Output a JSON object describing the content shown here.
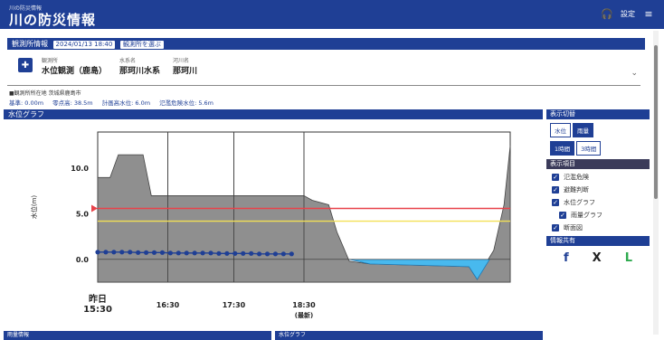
{
  "header": {
    "subtitle": "川の防災情報",
    "title": "川の防災情報",
    "tool_label": "設定"
  },
  "section_bar": {
    "label": "観測所情報",
    "timestamp": "2024/01/13 18:40",
    "link_label": "観測所を選ぶ"
  },
  "station": {
    "fields": [
      {
        "k": "観測所",
        "v": "水位観測（鹿島）"
      },
      {
        "k": "水系名",
        "v": "那珂川水系"
      },
      {
        "k": "河川名",
        "v": "那珂川"
      }
    ]
  },
  "info": {
    "row1": "■観測所所在地 茨城県鹿島市",
    "row2": [
      "基準: 0.00m",
      "零点高: 38.5m",
      "計画高水位: 6.0m",
      "氾濫危険水位: 5.6m"
    ]
  },
  "chart_panel": {
    "label": "水位グラフ"
  },
  "chart_data": {
    "type": "area",
    "ylabel": "水位(m)",
    "ylim": [
      -2.5,
      14.0
    ],
    "y_ticks": [
      10.0,
      5.0,
      0.0
    ],
    "x_ticks": [
      "16:30",
      "17:30",
      "18:30"
    ],
    "x_first_label": "昨日\n15:30",
    "x_last_sublabel": "(最新)",
    "terrain_profile": [
      [
        0,
        9.0
      ],
      [
        0.03,
        9.0
      ],
      [
        0.05,
        11.5
      ],
      [
        0.11,
        11.5
      ],
      [
        0.13,
        7.0
      ],
      [
        0.22,
        7.0
      ],
      [
        0.22,
        7.0
      ],
      [
        0.44,
        7.0
      ],
      [
        0.5,
        7.0
      ],
      [
        0.52,
        6.5
      ],
      [
        0.56,
        6.0
      ],
      [
        0.58,
        3.0
      ],
      [
        0.61,
        -0.2
      ],
      [
        0.66,
        -0.5
      ],
      [
        0.9,
        -0.8
      ],
      [
        0.92,
        -2.2
      ],
      [
        0.94,
        -0.5
      ],
      [
        0.96,
        1.0
      ],
      [
        0.985,
        6.0
      ],
      [
        1.0,
        12.5
      ]
    ],
    "water_polygon": [
      [
        0.61,
        0.0
      ],
      [
        0.95,
        0.0
      ],
      [
        0.92,
        -2.2
      ],
      [
        0.9,
        -0.8
      ],
      [
        0.66,
        -0.5
      ]
    ],
    "threshold_lines": [
      {
        "value": 5.6,
        "color": "#e8424a"
      },
      {
        "value": 4.2,
        "color": "#f2e055"
      }
    ],
    "series": [
      {
        "color": "#1f3f95",
        "values": [
          0.8,
          0.8,
          0.8,
          0.8,
          0.8,
          0.75,
          0.75,
          0.75,
          0.75,
          0.7,
          0.7,
          0.7,
          0.7,
          0.7,
          0.7,
          0.65,
          0.65,
          0.65,
          0.65,
          0.65,
          0.6,
          0.6,
          0.6,
          0.6,
          0.6
        ]
      }
    ],
    "series_x_range": [
      0.0,
      0.47
    ],
    "grid": true
  },
  "side": {
    "display_label": "表示切替",
    "toggle_a": [
      "水位",
      "雨量"
    ],
    "toggle_b": [
      "1時間",
      "3時間"
    ],
    "layers_label": "表示項目",
    "checks": [
      "氾濫危険",
      "避難判断",
      "水位グラフ",
      "雨量グラフ",
      "断面図"
    ],
    "share_label": "情報共有",
    "share_icons": [
      "f",
      "X",
      "L"
    ],
    "share_colors": [
      "#1f3f95",
      "#222222",
      "#2eaa4e"
    ]
  },
  "bottom": {
    "left": "雨量情報",
    "right": "水位グラフ"
  }
}
